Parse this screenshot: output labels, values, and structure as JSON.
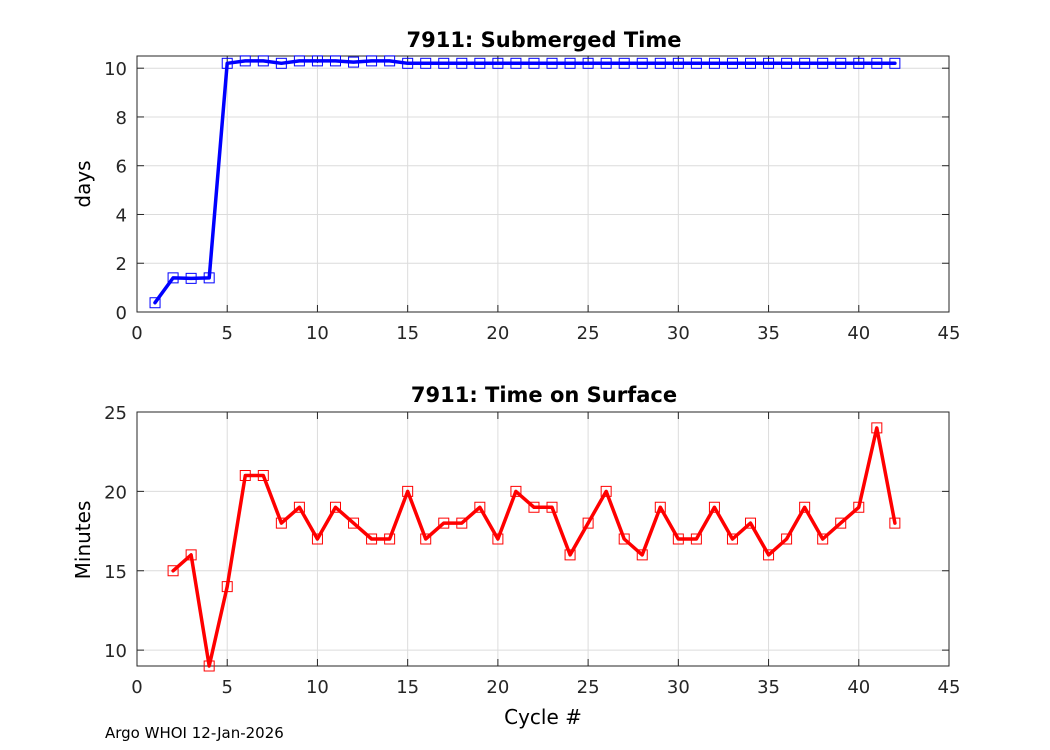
{
  "footer": "Argo WHOI 12-Jan-2026",
  "chart_data": [
    {
      "type": "line",
      "title": "7911: Submerged Time",
      "xlabel": "",
      "ylabel": "days",
      "xlim": [
        0,
        45
      ],
      "ylim": [
        0,
        10.5
      ],
      "xticks": [
        0,
        5,
        10,
        15,
        20,
        25,
        30,
        35,
        40,
        45
      ],
      "yticks": [
        0,
        2,
        4,
        6,
        8,
        10
      ],
      "grid": true,
      "color": "#0000ff",
      "marker": "square",
      "x": [
        1,
        2,
        3,
        4,
        5,
        6,
        7,
        8,
        9,
        10,
        11,
        12,
        13,
        14,
        15,
        16,
        17,
        18,
        19,
        20,
        21,
        22,
        23,
        24,
        25,
        26,
        27,
        28,
        29,
        30,
        31,
        32,
        33,
        34,
        35,
        36,
        37,
        38,
        39,
        40,
        41,
        42
      ],
      "values": [
        0.38,
        1.4,
        1.38,
        1.4,
        10.2,
        10.3,
        10.3,
        10.2,
        10.3,
        10.3,
        10.3,
        10.25,
        10.3,
        10.3,
        10.2,
        10.2,
        10.2,
        10.2,
        10.2,
        10.2,
        10.2,
        10.2,
        10.2,
        10.2,
        10.2,
        10.2,
        10.2,
        10.2,
        10.2,
        10.2,
        10.2,
        10.2,
        10.2,
        10.2,
        10.2,
        10.2,
        10.2,
        10.2,
        10.2,
        10.2,
        10.2,
        10.2
      ]
    },
    {
      "type": "line",
      "title": "7911: Time on Surface",
      "xlabel": "Cycle #",
      "ylabel": "Minutes",
      "xlim": [
        0,
        45
      ],
      "ylim": [
        9,
        25
      ],
      "xticks": [
        0,
        5,
        10,
        15,
        20,
        25,
        30,
        35,
        40,
        45
      ],
      "yticks": [
        10,
        15,
        20,
        25
      ],
      "grid": true,
      "color": "#ff0000",
      "marker": "square",
      "x": [
        2,
        3,
        4,
        5,
        6,
        7,
        8,
        9,
        10,
        11,
        12,
        13,
        14,
        15,
        16,
        17,
        18,
        19,
        20,
        21,
        22,
        23,
        24,
        25,
        26,
        27,
        28,
        29,
        30,
        31,
        32,
        33,
        34,
        35,
        36,
        37,
        38,
        39,
        40,
        41,
        42
      ],
      "values": [
        15,
        16,
        9,
        14,
        21,
        21,
        18,
        19,
        17,
        19,
        18,
        17,
        17,
        20,
        17,
        18,
        18,
        19,
        17,
        20,
        19,
        19,
        16,
        18,
        20,
        17,
        16,
        19,
        17,
        17,
        19,
        17,
        18,
        16,
        17,
        19,
        17,
        18,
        19,
        24,
        18
      ]
    }
  ]
}
